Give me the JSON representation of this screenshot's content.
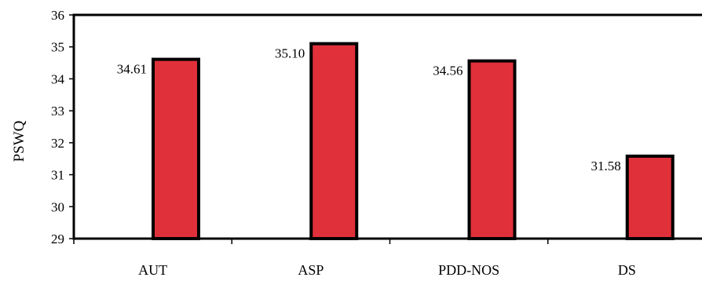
{
  "chart_data": {
    "type": "bar",
    "categories": [
      "AUT",
      "ASP",
      "PDD-NOS",
      "DS"
    ],
    "values": [
      34.61,
      35.1,
      34.56,
      31.58
    ],
    "value_labels": [
      "34.61",
      "35.10",
      "34.56",
      "31.58"
    ],
    "ylabel": "PSWQ",
    "xlabel": "",
    "ylim": [
      29,
      36
    ],
    "yticks": [
      "29",
      "30",
      "31",
      "32",
      "33",
      "34",
      "35",
      "36"
    ],
    "bar_color": "#e0313a",
    "legend": "none",
    "grid": false
  }
}
